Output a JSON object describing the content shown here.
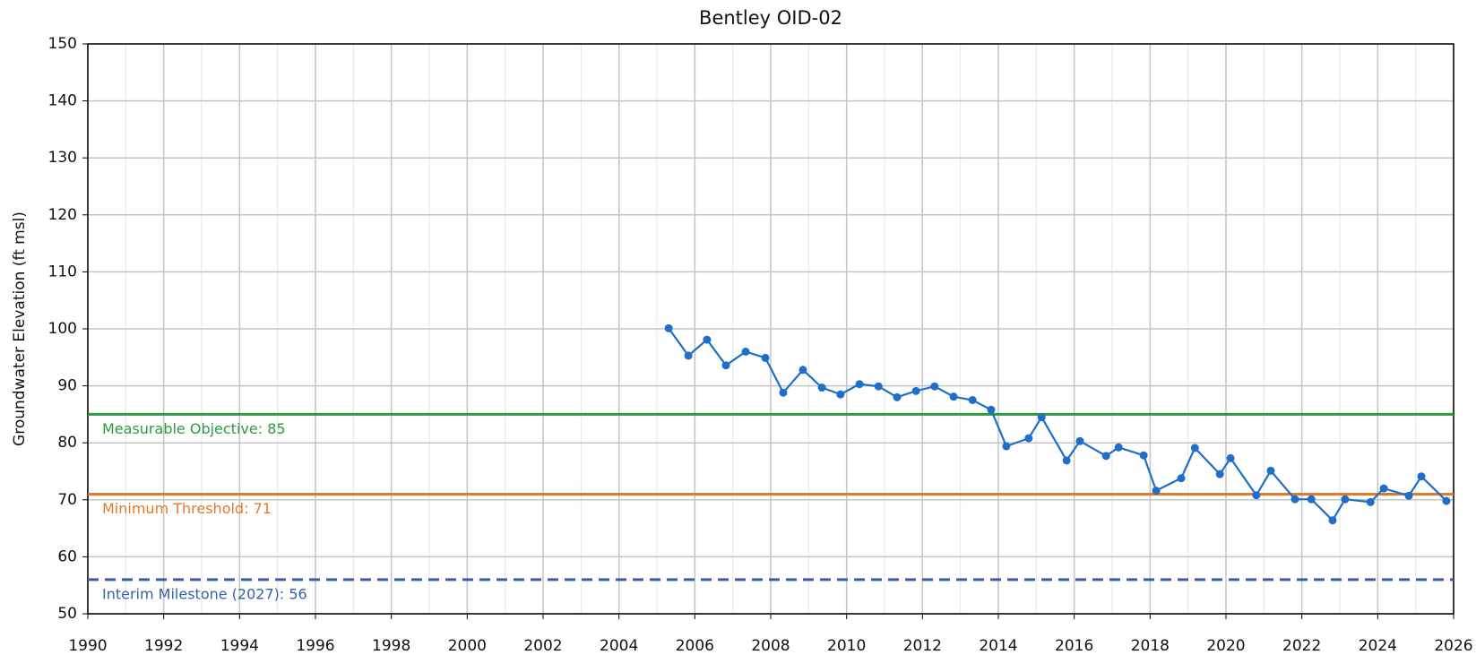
{
  "chart_data": {
    "type": "line",
    "title": "Bentley OID-02",
    "y_label": "Groundwater Elevation (ft msl)",
    "xlim": [
      1990,
      2026
    ],
    "xticks": [
      1990,
      1992,
      1994,
      1996,
      1998,
      2000,
      2002,
      2004,
      2006,
      2008,
      2010,
      2012,
      2014,
      2016,
      2018,
      2020,
      2022,
      2024,
      2026
    ],
    "x_minor_ticks": [
      1991,
      1993,
      1995,
      1997,
      1999,
      2001,
      2003,
      2005,
      2007,
      2009,
      2011,
      2013,
      2015,
      2017,
      2019,
      2021,
      2023,
      2025
    ],
    "ylim": [
      50,
      150
    ],
    "yticks": [
      50,
      60,
      70,
      80,
      90,
      100,
      110,
      120,
      130,
      140,
      150
    ],
    "grid": true,
    "series": [
      {
        "color": "#1f6fc9",
        "x": [
          2005.31,
          2005.83,
          2006.32,
          2006.82,
          2007.34,
          2007.86,
          2008.33,
          2008.85,
          2009.35,
          2009.84,
          2010.34,
          2010.84,
          2011.33,
          2011.83,
          2012.32,
          2012.82,
          2013.32,
          2013.81,
          2014.21,
          2014.8,
          2015.14,
          2015.8,
          2016.15,
          2016.84,
          2017.17,
          2017.83,
          2018.16,
          2018.82,
          2019.18,
          2019.84,
          2020.12,
          2020.8,
          2021.18,
          2021.82,
          2022.25,
          2022.81,
          2023.14,
          2023.81,
          2024.16,
          2024.82,
          2025.15,
          2025.81
        ],
        "values": [
          100.1,
          95.3,
          98.1,
          93.6,
          96.0,
          94.9,
          88.8,
          92.8,
          89.7,
          88.5,
          90.3,
          89.9,
          88.0,
          89.1,
          89.9,
          88.1,
          87.5,
          85.8,
          79.4,
          80.8,
          84.5,
          76.9,
          80.3,
          77.7,
          79.2,
          77.8,
          71.6,
          73.8,
          79.1,
          74.5,
          77.3,
          70.8,
          75.1,
          70.1,
          70.1,
          66.4,
          70.1,
          69.6,
          72.0,
          70.7,
          74.1,
          69.8
        ]
      }
    ],
    "reference_lines": [
      {
        "label": "Measurable Objective: 85",
        "value": 85,
        "color": "#2e9a3e",
        "dashed": false
      },
      {
        "label": "Minimum Threshold: 71",
        "value": 71,
        "color": "#e5792a",
        "dashed": false
      },
      {
        "label": "Interim Milestone (2027): 56",
        "value": 56,
        "color": "#3560a8",
        "dashed": true
      }
    ]
  }
}
